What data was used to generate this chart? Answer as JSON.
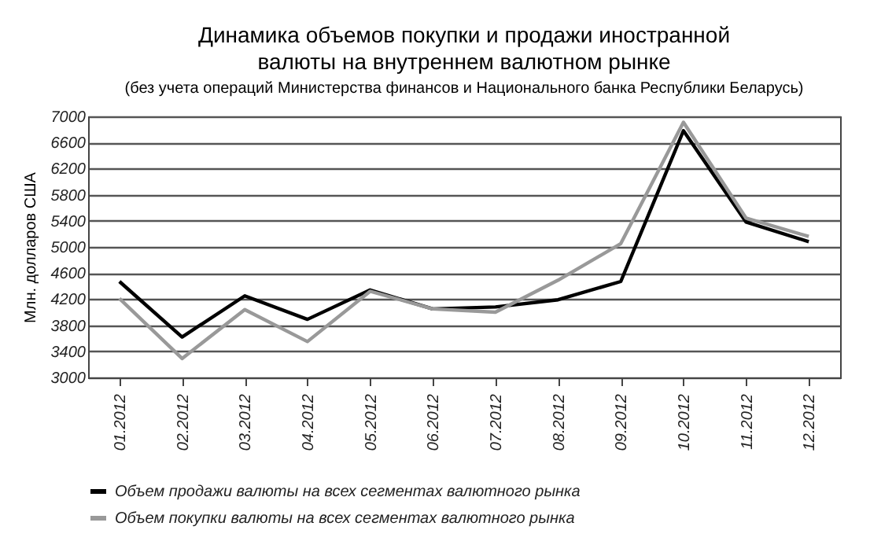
{
  "chart_data": {
    "type": "line",
    "title": "Динамика объемов покупки и продажи иностранной валюты на внутреннем валютном рынке",
    "subtitle": "(без учета операций Министерства финансов и Национального банка Республики Беларусь)",
    "ylabel": "Млн. долларов США",
    "categories": [
      "01.2012",
      "02.2012",
      "03.2012",
      "04.2012",
      "05.2012",
      "06.2012",
      "07.2012",
      "08.2012",
      "09.2012",
      "10.2012",
      "11.2012",
      "12.2012"
    ],
    "series": [
      {
        "name": "Объем продажи валюты на всех сегментах валютного рынка",
        "color": "#000000",
        "values": [
          4470,
          3620,
          4250,
          3890,
          4340,
          4050,
          4080,
          4190,
          4470,
          6780,
          5380,
          5080
        ]
      },
      {
        "name": "Объем покупки валюты на всех сегментах валютного рынка",
        "color": "#999999",
        "values": [
          4210,
          3290,
          4040,
          3550,
          4320,
          4050,
          4000,
          4490,
          5050,
          6910,
          5440,
          5160
        ]
      }
    ],
    "ylim": [
      3000,
      7000
    ],
    "yticks": [
      3000,
      3400,
      3800,
      4200,
      4600,
      5000,
      5400,
      5800,
      6200,
      6600,
      7000
    ],
    "grid": "y",
    "legend": "bottom left",
    "marker": "none",
    "line_style": "solid"
  }
}
